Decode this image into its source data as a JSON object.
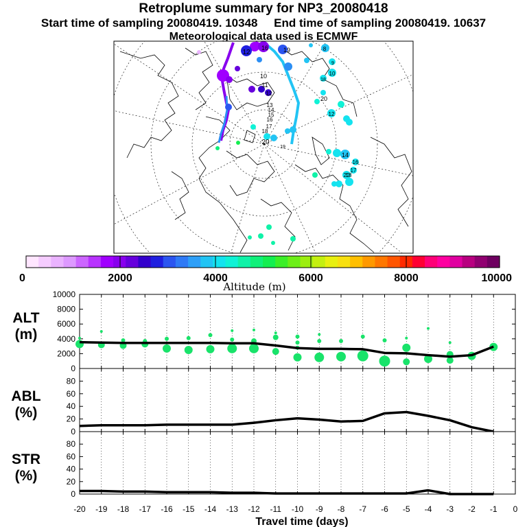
{
  "header": {
    "title": "Retroplume summary for NP3_20080418",
    "start_label": "Start time of sampling 20080419. 10348",
    "end_label": "End time of sampling 20080419. 10637",
    "met_label": "Meteorological data used is ECMWF"
  },
  "colorbar": {
    "label": "Altitude (m)",
    "ticks": [
      "0",
      "2000",
      "4000",
      "6000",
      "8000",
      "10000"
    ],
    "colors": [
      "#ffe6ff",
      "#f5ccff",
      "#eab3ff",
      "#dd99ff",
      "#cc66ff",
      "#b833ff",
      "#a000ff",
      "#8800ee",
      "#6600dd",
      "#3300cc",
      "#1f1fe0",
      "#2b55f0",
      "#2f7af6",
      "#2e9ff8",
      "#22c4f4",
      "#14e3ef",
      "#10f2d6",
      "#10f2a8",
      "#10f07a",
      "#14ee50",
      "#3cee28",
      "#6cee18",
      "#9cee10",
      "#c4f010",
      "#e8f010",
      "#f8e010",
      "#ffbf00",
      "#ff9900",
      "#ff7700",
      "#ff5500",
      "#ff2a00",
      "#ff0033",
      "#ff0077",
      "#ff00a0",
      "#e000a0",
      "#b80080",
      "#900070",
      "#6e0060"
    ]
  },
  "map": {
    "center_label": "20",
    "labels": [
      {
        "t": "12",
        "c": "#1f1fe0"
      },
      {
        "t": "16",
        "c": "#2b55f0"
      },
      {
        "t": "19",
        "c": "#2e9ff8"
      },
      {
        "t": "8",
        "c": "#22c4f4"
      },
      {
        "t": "9",
        "c": "#22c4f4"
      },
      {
        "t": "10",
        "c": "#22c4f4"
      },
      {
        "t": "18",
        "c": "#22c4f4"
      },
      {
        "t": "20",
        "c": "#22c4f4"
      },
      {
        "t": "10",
        "c": "#ffffff"
      },
      {
        "t": "11",
        "c": "#ffffff"
      },
      {
        "t": "12",
        "c": "#ffffff"
      },
      {
        "t": "13",
        "c": "#ffffff"
      },
      {
        "t": "14",
        "c": "#ffffff"
      },
      {
        "t": "15",
        "c": "#ffffff"
      },
      {
        "t": "16",
        "c": "#ffffff"
      },
      {
        "t": "17",
        "c": "#ffffff"
      },
      {
        "t": "18",
        "c": "#ffffff"
      },
      {
        "t": "12",
        "c": "#14e3ef"
      },
      {
        "t": "14",
        "c": "#14e3ef"
      },
      {
        "t": "16",
        "c": "#14e3ef"
      },
      {
        "t": "17",
        "c": "#14e3ef"
      },
      {
        "t": "18",
        "c": "#14e3ef"
      },
      {
        "t": "20",
        "c": "#14e3ef"
      },
      {
        "t": "19",
        "c": "#10f2d6"
      }
    ]
  },
  "chart_data": [
    {
      "type": "line",
      "name": "altitude",
      "ylabel": "ALT\n(m)",
      "ylabel_lines": [
        "ALT",
        "(m)"
      ],
      "ylim": [
        0,
        10000
      ],
      "yticks": [
        "0",
        "2000",
        "4000",
        "6000",
        "8000",
        "10000"
      ],
      "x": [
        -20,
        -19,
        -18,
        -17,
        -16,
        -15,
        -14,
        -13,
        -12,
        -11,
        -10,
        -9,
        -8,
        -7,
        -6,
        -5,
        -4,
        -3,
        -2,
        -1
      ],
      "values": [
        3550,
        3500,
        3450,
        3450,
        3450,
        3450,
        3450,
        3400,
        3400,
        3100,
        2750,
        2650,
        2650,
        2600,
        2100,
        2050,
        1800,
        1600,
        1800,
        2950
      ],
      "scatter": [
        {
          "x": -20,
          "y": 3300,
          "s": 6
        },
        {
          "x": -20,
          "y": 4100,
          "s": 2
        },
        {
          "x": -19,
          "y": 3200,
          "s": 5
        },
        {
          "x": -19,
          "y": 5000,
          "s": 2
        },
        {
          "x": -18,
          "y": 3100,
          "s": 5
        },
        {
          "x": -18,
          "y": 3800,
          "s": 3
        },
        {
          "x": -17,
          "y": 3300,
          "s": 5
        },
        {
          "x": -17,
          "y": 3700,
          "s": 3
        },
        {
          "x": -16,
          "y": 2700,
          "s": 6
        },
        {
          "x": -16,
          "y": 4000,
          "s": 3
        },
        {
          "x": -15,
          "y": 2500,
          "s": 6
        },
        {
          "x": -15,
          "y": 4100,
          "s": 3
        },
        {
          "x": -14,
          "y": 2600,
          "s": 6
        },
        {
          "x": -14,
          "y": 4500,
          "s": 3
        },
        {
          "x": -13,
          "y": 2700,
          "s": 7
        },
        {
          "x": -13,
          "y": 3900,
          "s": 3
        },
        {
          "x": -13,
          "y": 5100,
          "s": 2
        },
        {
          "x": -12,
          "y": 2700,
          "s": 7
        },
        {
          "x": -12,
          "y": 3700,
          "s": 4
        },
        {
          "x": -12,
          "y": 5200,
          "s": 2
        },
        {
          "x": -11,
          "y": 2300,
          "s": 5
        },
        {
          "x": -11,
          "y": 4200,
          "s": 4
        },
        {
          "x": -11,
          "y": 4800,
          "s": 2
        },
        {
          "x": -10,
          "y": 1500,
          "s": 6
        },
        {
          "x": -10,
          "y": 2800,
          "s": 3
        },
        {
          "x": -10,
          "y": 3500,
          "s": 3
        },
        {
          "x": -10,
          "y": 4300,
          "s": 3
        },
        {
          "x": -9,
          "y": 1500,
          "s": 7
        },
        {
          "x": -9,
          "y": 3700,
          "s": 3
        },
        {
          "x": -9,
          "y": 4600,
          "s": 2
        },
        {
          "x": -8,
          "y": 1600,
          "s": 7
        },
        {
          "x": -8,
          "y": 3700,
          "s": 3
        },
        {
          "x": -7,
          "y": 1700,
          "s": 8
        },
        {
          "x": -7,
          "y": 4300,
          "s": 3
        },
        {
          "x": -6,
          "y": 1000,
          "s": 8
        },
        {
          "x": -6,
          "y": 3800,
          "s": 3
        },
        {
          "x": -5,
          "y": 900,
          "s": 5
        },
        {
          "x": -5,
          "y": 2800,
          "s": 6
        },
        {
          "x": -5,
          "y": 4100,
          "s": 2
        },
        {
          "x": -4,
          "y": 1300,
          "s": 6
        },
        {
          "x": -4,
          "y": 5400,
          "s": 2
        },
        {
          "x": -3,
          "y": 1100,
          "s": 5
        },
        {
          "x": -3,
          "y": 1900,
          "s": 5
        },
        {
          "x": -3,
          "y": 3500,
          "s": 2
        },
        {
          "x": -2,
          "y": 1700,
          "s": 6
        },
        {
          "x": -1,
          "y": 2900,
          "s": 6
        }
      ]
    },
    {
      "type": "line",
      "name": "abl",
      "ylabel": "ABL\n(%)",
      "ylabel_lines": [
        "ABL",
        "(%)"
      ],
      "ylim": [
        0,
        100
      ],
      "yticks": [
        "0",
        "20",
        "40",
        "60",
        "80"
      ],
      "x": [
        -20,
        -19,
        -18,
        -17,
        -16,
        -15,
        -14,
        -13,
        -12,
        -11,
        -10,
        -9,
        -8,
        -7,
        -6,
        -5,
        -4,
        -3,
        -2,
        -1
      ],
      "values": [
        9,
        10,
        10,
        10,
        11,
        11,
        11,
        11,
        14,
        18,
        21,
        19,
        16,
        17,
        29,
        31,
        25,
        18,
        7,
        0
      ]
    },
    {
      "type": "line",
      "name": "stratosphere",
      "ylabel": "STR\n(%)",
      "ylabel_lines": [
        "STR",
        "(%)"
      ],
      "ylim": [
        0,
        100
      ],
      "yticks": [
        "0",
        "20",
        "40",
        "60",
        "80"
      ],
      "x": [
        -20,
        -19,
        -18,
        -17,
        -16,
        -15,
        -14,
        -13,
        -12,
        -11,
        -10,
        -9,
        -8,
        -7,
        -6,
        -5,
        -4,
        -3,
        -2,
        -1
      ],
      "values": [
        5,
        5,
        4,
        4,
        3,
        3,
        3,
        2,
        2,
        1,
        1,
        1,
        1,
        1,
        1,
        1,
        6,
        0,
        0,
        0
      ],
      "xlabel": "Travel time (days)",
      "xticks": [
        "-20",
        "-19",
        "-18",
        "-17",
        "-16",
        "-15",
        "-14",
        "-13",
        "-12",
        "-11",
        "-10",
        "-9",
        "-8",
        "-7",
        "-6",
        "-5",
        "-4",
        "-3",
        "-2",
        "-1",
        "0"
      ]
    }
  ]
}
